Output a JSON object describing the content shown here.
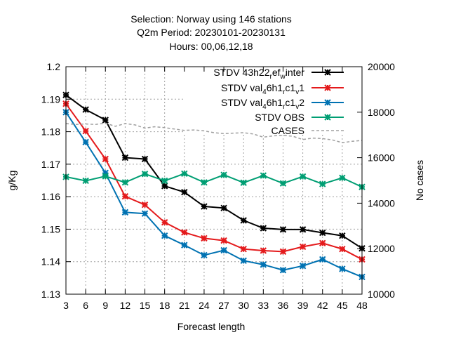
{
  "chart_data": {
    "type": "line",
    "title_lines": [
      "Selection: Norway using   146 stations",
      "Q2m   Period: 20230101-20230131",
      "Hours:  00,06,12,18"
    ],
    "xlabel": "Forecast length",
    "ylabel": "g/Kg",
    "y2label": "No cases",
    "x": [
      3,
      6,
      9,
      12,
      15,
      18,
      21,
      24,
      27,
      30,
      33,
      36,
      39,
      42,
      45,
      48
    ],
    "xlim": [
      3,
      48
    ],
    "ylim": [
      1.13,
      1.2
    ],
    "y_ticks": [
      "1.13",
      "1.14",
      "1.15",
      "1.16",
      "1.17",
      "1.18",
      "1.19",
      "1.2"
    ],
    "y2lim": [
      10000,
      20000
    ],
    "y2_ticks": [
      "10000",
      "12000",
      "14000",
      "16000",
      "18000",
      "20000"
    ],
    "grid": true,
    "legend_position": "top-right",
    "series": [
      {
        "legend": [
          "STDV 43h22",
          "r",
          "ef",
          "w",
          "inter"
        ],
        "color": "#000000",
        "marker": "x",
        "axis": "left",
        "values": [
          1.1913,
          1.1868,
          1.1836,
          1.172,
          1.1716,
          1.1633,
          1.1614,
          1.157,
          1.1565,
          1.1527,
          1.1503,
          1.1499,
          1.1499,
          1.1489,
          1.148,
          1.1441
        ]
      },
      {
        "legend": [
          "STDV val",
          "4",
          "6h1",
          "r",
          "c1",
          "v",
          "1"
        ],
        "color": "#e41a1c",
        "marker": "x",
        "axis": "left",
        "values": [
          1.1886,
          1.1802,
          1.1716,
          1.1601,
          1.1575,
          1.1521,
          1.149,
          1.1472,
          1.1465,
          1.1439,
          1.1434,
          1.1431,
          1.1446,
          1.1457,
          1.1439,
          1.1407
        ]
      },
      {
        "legend": [
          "STDV val",
          "4",
          "6h1",
          "r",
          "c1",
          "v",
          "2"
        ],
        "color": "#0072b2",
        "marker": "x",
        "axis": "left",
        "values": [
          1.186,
          1.1768,
          1.1673,
          1.1552,
          1.1548,
          1.148,
          1.1451,
          1.142,
          1.1435,
          1.1403,
          1.1391,
          1.1374,
          1.1387,
          1.1407,
          1.1378,
          1.1353
        ]
      },
      {
        "legend": [
          "STDV OBS"
        ],
        "color": "#009e73",
        "marker": "x",
        "axis": "left",
        "values": [
          1.1661,
          1.1649,
          1.1663,
          1.1644,
          1.167,
          1.1649,
          1.1671,
          1.1644,
          1.1667,
          1.1643,
          1.1665,
          1.1641,
          1.1662,
          1.1639,
          1.1658,
          1.163
        ]
      },
      {
        "legend": [
          "CASES"
        ],
        "color": "#a0a0a0",
        "dashed": true,
        "axis": "right",
        "x": [
          3,
          4.5,
          6,
          7.5,
          9,
          10.5,
          12,
          13.5,
          15,
          16.5,
          18,
          19.5,
          21,
          22.5,
          24,
          25.5,
          27,
          28.5,
          30,
          31.5,
          33,
          34.5,
          36,
          37.5,
          39,
          40.5,
          42,
          43.5,
          45,
          46.5,
          48
        ],
        "values": [
          17500,
          17460,
          17480,
          17460,
          17520,
          17380,
          17500,
          17440,
          17300,
          17360,
          17320,
          17260,
          17200,
          17220,
          17180,
          17100,
          17060,
          17080,
          17100,
          17040,
          16900,
          16960,
          16980,
          16940,
          16800,
          16860,
          16840,
          16780,
          16660,
          16720,
          16760
        ]
      }
    ]
  }
}
